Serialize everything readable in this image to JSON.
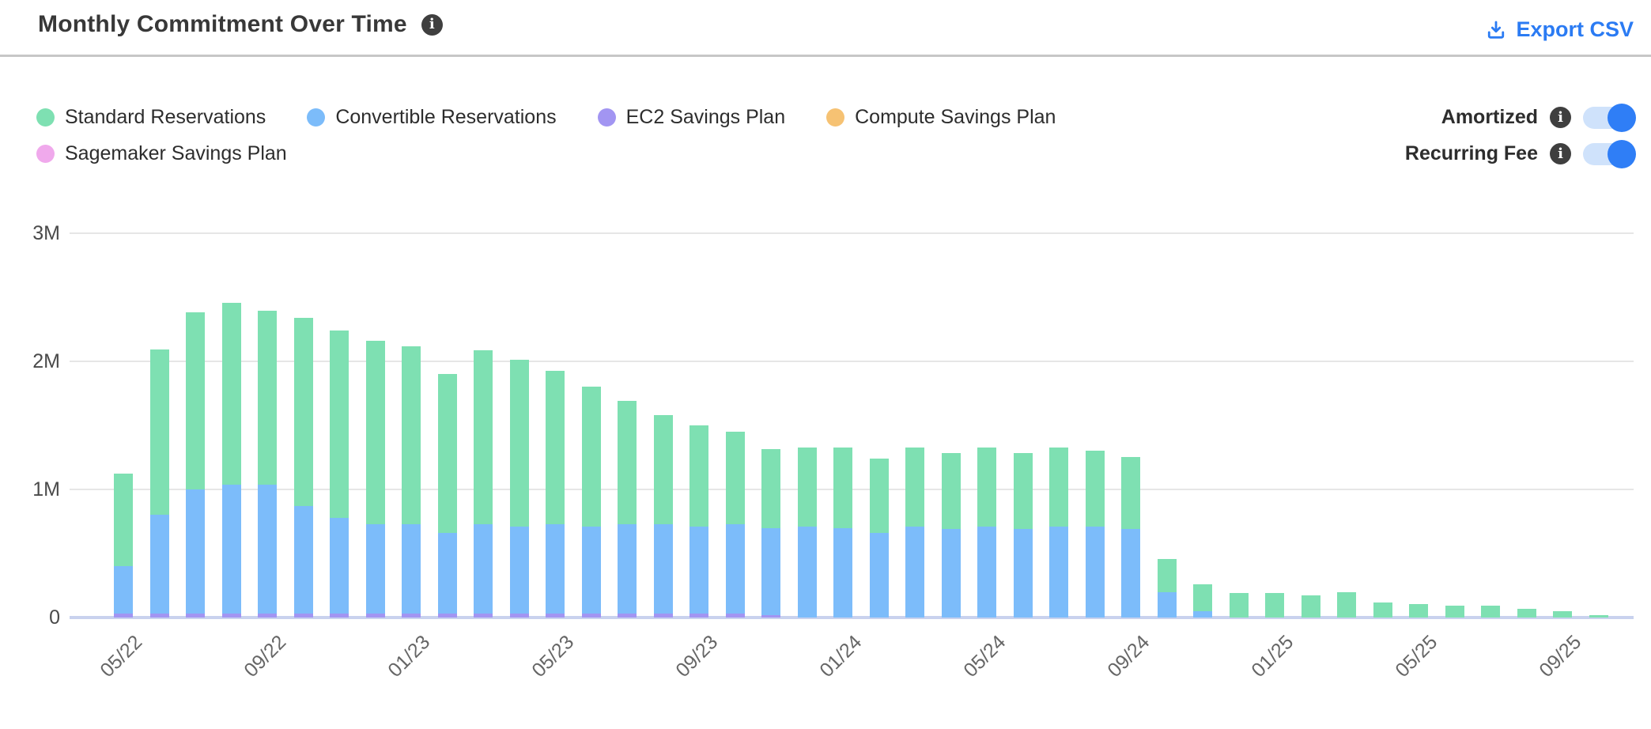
{
  "header": {
    "title": "Monthly Commitment Over Time",
    "export_label": "Export CSV"
  },
  "legend": {
    "items": [
      {
        "label": "Standard Reservations",
        "color": "#7ee0b2"
      },
      {
        "label": "Convertible Reservations",
        "color": "#7cbcfa"
      },
      {
        "label": "EC2 Savings Plan",
        "color": "#a295f2"
      },
      {
        "label": "Compute Savings Plan",
        "color": "#f6c273"
      },
      {
        "label": "Sagemaker Savings Plan",
        "color": "#f0a9ec"
      }
    ]
  },
  "toggles": [
    {
      "label": "Amortized",
      "state": "on"
    },
    {
      "label": "Recurring Fee",
      "state": "on"
    }
  ],
  "chart_data": {
    "type": "bar",
    "stacked": true,
    "title": "Monthly Commitment Over Time",
    "ylabel": "",
    "xlabel": "",
    "unit": "millions",
    "ylim": [
      0,
      3
    ],
    "y_ticks": [
      "3M",
      "2M",
      "1M",
      "0"
    ],
    "grid": true,
    "legend_position": "top-left",
    "x": [
      "05/22",
      "06/22",
      "07/22",
      "08/22",
      "09/22",
      "10/22",
      "11/22",
      "12/22",
      "01/23",
      "02/23",
      "03/23",
      "04/23",
      "05/23",
      "06/23",
      "07/23",
      "08/23",
      "09/23",
      "10/23",
      "11/23",
      "12/23",
      "01/24",
      "02/24",
      "03/24",
      "04/24",
      "05/24",
      "06/24",
      "07/24",
      "08/24",
      "09/24",
      "10/24",
      "11/24",
      "12/24",
      "01/25",
      "02/25",
      "03/25",
      "04/25",
      "05/25",
      "06/25",
      "07/25",
      "08/25",
      "09/25",
      "10/25"
    ],
    "x_tick_labels_shown": [
      "05/22",
      "09/22",
      "01/23",
      "05/23",
      "09/23",
      "01/24",
      "05/24",
      "09/24",
      "01/25",
      "05/25",
      "09/25"
    ],
    "stack_order_bottom_to_top": [
      "EC2 Savings Plan",
      "Convertible Reservations",
      "Standard Reservations",
      "Compute Savings Plan",
      "Sagemaker Savings Plan"
    ],
    "series": [
      {
        "name": "Standard Reservations",
        "color": "#7ee0b2",
        "values": [
          0.72,
          1.29,
          1.38,
          1.42,
          1.36,
          1.47,
          1.46,
          1.43,
          1.39,
          1.24,
          1.36,
          1.3,
          1.2,
          1.09,
          0.96,
          0.85,
          0.79,
          0.72,
          0.62,
          0.62,
          0.63,
          0.58,
          0.62,
          0.59,
          0.62,
          0.59,
          0.62,
          0.59,
          0.56,
          0.26,
          0.21,
          0.19,
          0.19,
          0.17,
          0.2,
          0.115,
          0.105,
          0.09,
          0.09,
          0.07,
          0.05,
          0.02
        ]
      },
      {
        "name": "Convertible Reservations",
        "color": "#7cbcfa",
        "values": [
          0.37,
          0.77,
          0.97,
          1.01,
          1.01,
          0.84,
          0.75,
          0.7,
          0.7,
          0.63,
          0.7,
          0.68,
          0.7,
          0.68,
          0.7,
          0.7,
          0.68,
          0.7,
          0.68,
          0.71,
          0.7,
          0.66,
          0.71,
          0.69,
          0.71,
          0.69,
          0.71,
          0.71,
          0.69,
          0.2,
          0.05,
          0,
          0,
          0,
          0,
          0,
          0,
          0,
          0,
          0,
          0,
          0
        ]
      },
      {
        "name": "EC2 Savings Plan",
        "color": "#a295f2",
        "values": [
          0.03,
          0.03,
          0.03,
          0.03,
          0.03,
          0.03,
          0.03,
          0.03,
          0.03,
          0.03,
          0.03,
          0.03,
          0.03,
          0.03,
          0.03,
          0.03,
          0.03,
          0.03,
          0.02,
          0,
          0,
          0,
          0,
          0,
          0,
          0,
          0,
          0,
          0,
          0,
          0,
          0,
          0,
          0,
          0,
          0,
          0,
          0,
          0,
          0,
          0,
          0
        ]
      },
      {
        "name": "Compute Savings Plan",
        "color": "#f6c273",
        "values": [
          0,
          0,
          0,
          0,
          0,
          0,
          0,
          0,
          0,
          0,
          0,
          0,
          0,
          0,
          0,
          0,
          0,
          0,
          0,
          0,
          0,
          0,
          0,
          0,
          0,
          0,
          0,
          0,
          0,
          0,
          0,
          0,
          0,
          0,
          0,
          0,
          0,
          0,
          0,
          0,
          0,
          0
        ]
      },
      {
        "name": "Sagemaker Savings Plan",
        "color": "#f0a9ec",
        "values": [
          0,
          0,
          0,
          0,
          0,
          0,
          0,
          0,
          0,
          0,
          0,
          0,
          0,
          0,
          0,
          0,
          0,
          0,
          0,
          0,
          0,
          0,
          0,
          0,
          0,
          0,
          0,
          0,
          0,
          0,
          0,
          0,
          0,
          0,
          0,
          0,
          0,
          0,
          0,
          0,
          0,
          0
        ]
      }
    ]
  }
}
